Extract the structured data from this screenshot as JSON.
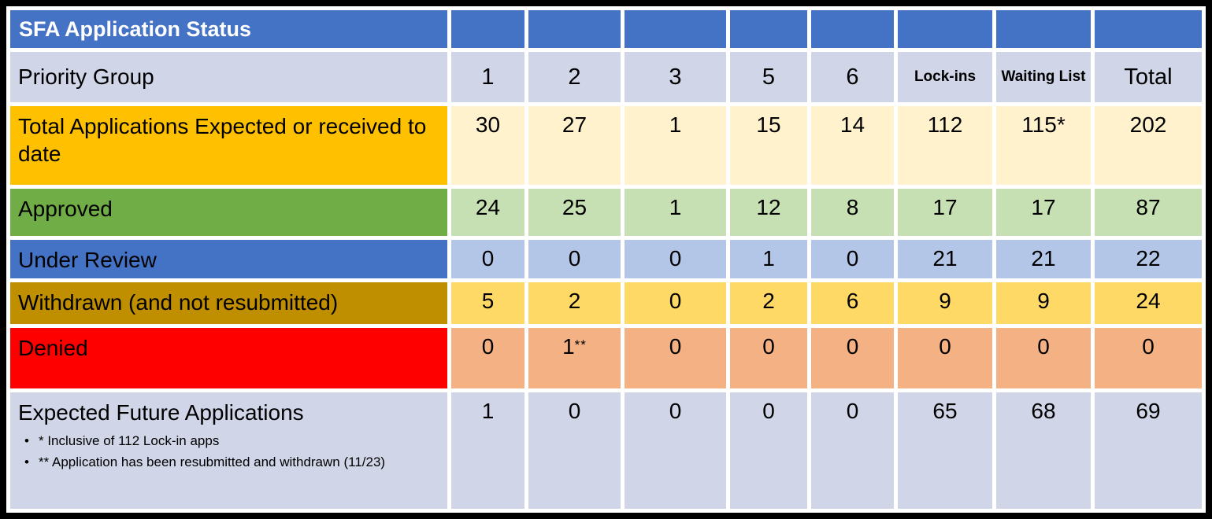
{
  "title": "SFA Application Status",
  "header": {
    "row_label": "Priority Group",
    "groups": [
      "1",
      "2",
      "3",
      "5",
      "6",
      "Lock-ins",
      "Waiting List",
      "Total"
    ]
  },
  "colors": {
    "title_bar": "#4472C4",
    "header_bg": "#D0D5E8",
    "grid_lines": "#FFFFFF",
    "frame": "#000000",
    "total_label": "#FFC000",
    "total_values": "#FFF2CC",
    "approved_label": "#70AD47",
    "approved_values": "#C6E0B4",
    "under_review_label": "#4472C4",
    "under_review_values": "#B4C6E7",
    "withdrawn_label": "#BF8F00",
    "withdrawn_values": "#FFD966",
    "denied_label": "#FF0000",
    "denied_values": "#F4B183",
    "expected_label": "#D0D5E8",
    "expected_values": "#D0D5E8"
  },
  "rows": [
    {
      "label": "Total Applications Expected or received to date",
      "values": [
        "30",
        "27",
        "1",
        "15",
        "14",
        "112",
        "115*",
        "202"
      ],
      "label_bg": "#FFC000",
      "value_bg": "#FFF2CC"
    },
    {
      "label": "Approved",
      "values": [
        "24",
        "25",
        "1",
        "12",
        "8",
        "17",
        "17",
        "87"
      ],
      "label_bg": "#70AD47",
      "value_bg": "#C6E0B4"
    },
    {
      "label": "Under Review",
      "values": [
        "0",
        "0",
        "0",
        "1",
        "0",
        "21",
        "21",
        "22"
      ],
      "label_bg": "#4472C4",
      "value_bg": "#B4C6E7"
    },
    {
      "label": "Withdrawn (and not resubmitted)",
      "values": [
        "5",
        "2",
        "0",
        "2",
        "6",
        "9",
        "9",
        "24"
      ],
      "label_bg": "#BF8F00",
      "value_bg": "#FFD966"
    },
    {
      "label": "Denied",
      "values": [
        "0",
        "1**",
        "0",
        "0",
        "0",
        "0",
        "0",
        "0"
      ],
      "label_bg": "#FF0000",
      "value_bg": "#F4B183"
    },
    {
      "label": "Expected Future Applications",
      "values": [
        "1",
        "0",
        "0",
        "0",
        "0",
        "65",
        "68",
        "69"
      ],
      "label_bg": "#D0D5E8",
      "value_bg": "#D0D5E8",
      "footnotes": [
        "* Inclusive of 112 Lock-in apps",
        "** Application has been resubmitted and withdrawn (11/23)"
      ]
    }
  ]
}
